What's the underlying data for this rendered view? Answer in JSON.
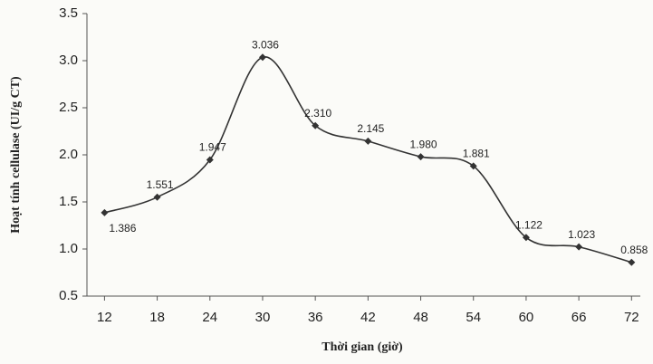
{
  "chart_data": {
    "type": "line",
    "x_label": "Thời gian (giờ)",
    "y_label": "Hoạt tính cellulase (UI/g CT)",
    "x": [
      12,
      18,
      24,
      30,
      36,
      42,
      48,
      54,
      60,
      66,
      72
    ],
    "values": [
      1.386,
      1.551,
      1.947,
      3.036,
      2.31,
      2.145,
      1.98,
      1.881,
      1.122,
      1.023,
      0.858
    ],
    "value_labels": [
      "1.386",
      "1.551",
      "1.947",
      "3.036",
      "2.310",
      "2.145",
      "1.980",
      "1.881",
      "1.122",
      "1.023",
      "0.858"
    ],
    "color": "#333333",
    "smooth": true,
    "grid": false,
    "xlim": [
      10,
      73
    ],
    "xticks": [
      12,
      18,
      24,
      30,
      36,
      42,
      48,
      54,
      60,
      66,
      72
    ],
    "ylim": [
      0.5,
      3.5
    ],
    "yticks": [
      0.5,
      {
        "value": 1,
        "label": "1.0"
      },
      1.5,
      {
        "value": 2,
        "label": "2.0"
      },
      2.5,
      {
        "value": 3,
        "label": "3.0"
      },
      3.5
    ]
  }
}
